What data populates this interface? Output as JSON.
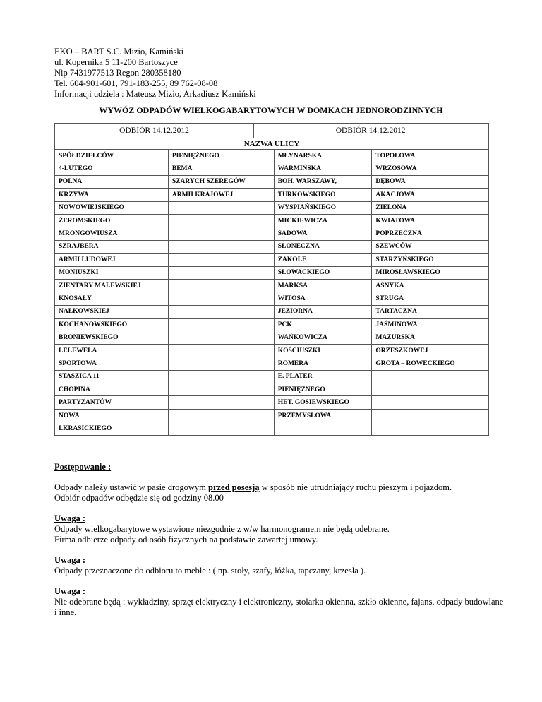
{
  "header": {
    "lines": [
      "EKO – BART  S.C. Mizio, Kamiński",
      "ul. Kopernika 5 11-200 Bartoszyce",
      "Nip 7431977513  Regon 280358180",
      "Tel. 604-901-601, 791-183-255, 89 762-08-08",
      "Informacji udziela : Mateusz Mizio, Arkadiusz Kamiński"
    ]
  },
  "title": "WYWÓZ ODPADÓW WIELKOGABARYTOWYCH W DOMKACH JEDNORODZINNYCH",
  "table": {
    "pickup_left": "ODBIÓR 14.12.2012",
    "pickup_right": "ODBIÓR 14.12.2012",
    "subheader": "NAZWA ULICY",
    "rows": [
      [
        "SPÓŁDZIELCÓW",
        "PIENIĘŻNEGO",
        "MŁYNARSKA",
        "TOPOLOWA"
      ],
      [
        "4-LUTEGO",
        "BEMA",
        "WARMIŃSKA",
        "WRZOSOWA"
      ],
      [
        "POLNA",
        "SZARYCH SZEREGÓW",
        "BOH. WARSZAWY,",
        "DĘBOWA"
      ],
      [
        "KRZYWA",
        "ARMII KRAJOWEJ",
        "TURKOWSKIEGO",
        "AKACJOWA"
      ],
      [
        "NOWOWIEJSKIEGO",
        "",
        "WYSPIAŃSKIEGO",
        "ZIELONA"
      ],
      [
        "ŻEROMSKIEGO",
        "",
        "MICKIEWICZA",
        "KWIATOWA"
      ],
      [
        "MRONGOWIUSZA",
        "",
        "SADOWA",
        "POPRZECZNA"
      ],
      [
        "SZRAJBERA",
        "",
        "SŁONECZNA",
        "SZEWCÓW"
      ],
      [
        "ARMII  LUDOWEJ",
        "",
        "ZAKOLE",
        "STARZYŃSKIEGO"
      ],
      [
        "MONIUSZKI",
        "",
        "SŁOWACKIEGO",
        "MIROSŁAWSKIEGO"
      ],
      [
        "ZIENTARY  MALEWSKIEJ",
        "",
        "MARKSA",
        "ASNYKA"
      ],
      [
        "KNOSAŁY",
        "",
        "WITOSA",
        "STRUGA"
      ],
      [
        "NAŁKOWSKIEJ",
        "",
        "JEZIORNA",
        "TARTACZNA"
      ],
      [
        "KOCHANOWSKIEGO",
        "",
        "PCK",
        "JAŚMINOWA"
      ],
      [
        "BRONIEWSKIEGO",
        "",
        "WAŃKOWICZA",
        "MAZURSKA"
      ],
      [
        "LELEWELA",
        "",
        "KOŚCIUSZKI",
        "ORZESZKOWEJ"
      ],
      [
        "SPORTOWA",
        "",
        "ROMERA",
        "GROTA – ROWECKIEGO"
      ],
      [
        "STASZICA 11",
        "",
        "E. PLATER",
        ""
      ],
      [
        "CHOPINA",
        "",
        "PIENIĘŻNEGO",
        ""
      ],
      [
        "PARTYZANTÓW",
        "",
        "HET. GOSIEWSKIEGO",
        ""
      ],
      [
        "NOWA",
        "",
        "PRZEMYSŁOWA",
        ""
      ],
      [
        "I.KRASICKIEGO",
        "",
        "",
        ""
      ]
    ]
  },
  "notes": {
    "heading": "Postępowanie :",
    "p1_before": "Odpady należy ustawić w pasie drogowym ",
    "p1_emph": "przed posesją",
    "p1_after": " w sposób nie utrudniający ruchu pieszym i pojazdom.",
    "p1_line2": "Odbiór odpadów odbędzie się od godziny 08.00",
    "warn1_label": "Uwaga :",
    "warn1_l1": "Odpady wielkogabarytowe  wystawione niezgodnie z w/w harmonogramem nie będą  odebrane.",
    "warn1_l2": "Firma odbierze odpady od osób fizycznych na podstawie zawartej umowy.",
    "warn2_label": "Uwaga :",
    "warn2_l1": "Odpady przeznaczone do odbioru to meble : ( np. stoły, szafy, łóżka, tapczany, krzesła ).",
    "warn3_label": "Uwaga : ",
    "warn3_l1": "Nie odebrane będą : wykładziny, sprzęt elektryczny i elektroniczny, stolarka okienna, szkło okienne, fajans, odpady budowlane i inne."
  }
}
